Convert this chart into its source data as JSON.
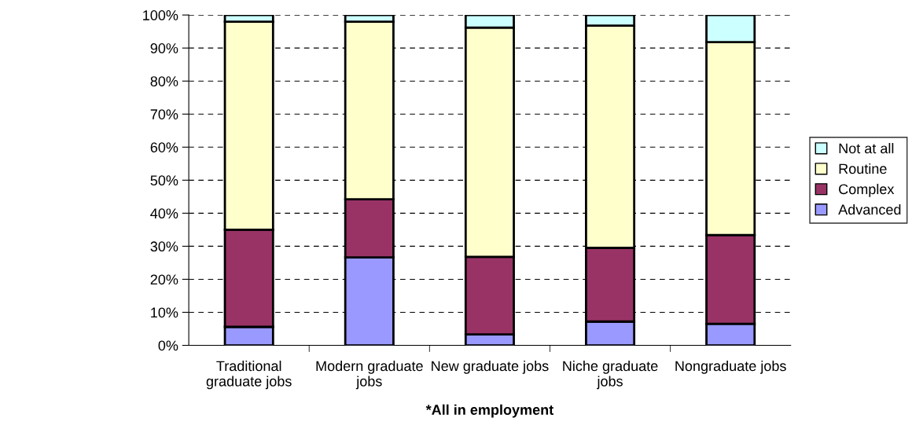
{
  "chart_data": {
    "type": "bar",
    "stacked": true,
    "xlabel": "*All in employment",
    "categories": [
      "Traditional\ngraduate jobs",
      "Modern graduate\njobs",
      "New graduate jobs",
      "Niche graduate\njobs",
      "Nongraduate jobs"
    ],
    "series": [
      {
        "name": "Advanced",
        "color": "#9999ff",
        "values": [
          5.6,
          26.6,
          3.3,
          7.2,
          6.5
        ]
      },
      {
        "name": "Complex",
        "color": "#993366",
        "values": [
          29.4,
          17.6,
          23.5,
          22.3,
          26.9
        ]
      },
      {
        "name": "Routine",
        "color": "#ffffcc",
        "values": [
          63,
          53.8,
          69.4,
          67.3,
          58.4
        ]
      },
      {
        "name": "Not at all",
        "color": "#ccffff",
        "values": [
          2,
          2,
          3.8,
          3.2,
          8.2
        ]
      }
    ],
    "ylim": [
      0,
      100
    ],
    "yticks": [
      {
        "value": 0,
        "label": "0%"
      },
      {
        "value": 10,
        "label": "10%"
      },
      {
        "value": 20,
        "label": "20%"
      },
      {
        "value": 30,
        "label": "30%"
      },
      {
        "value": 40,
        "label": "40%"
      },
      {
        "value": 50,
        "label": "50%"
      },
      {
        "value": 60,
        "label": "60%"
      },
      {
        "value": 70,
        "label": "70%"
      },
      {
        "value": 80,
        "label": "80%"
      },
      {
        "value": 90,
        "label": "90%"
      },
      {
        "value": 100,
        "label": "100%"
      }
    ],
    "grid": "y",
    "legend": "right"
  }
}
